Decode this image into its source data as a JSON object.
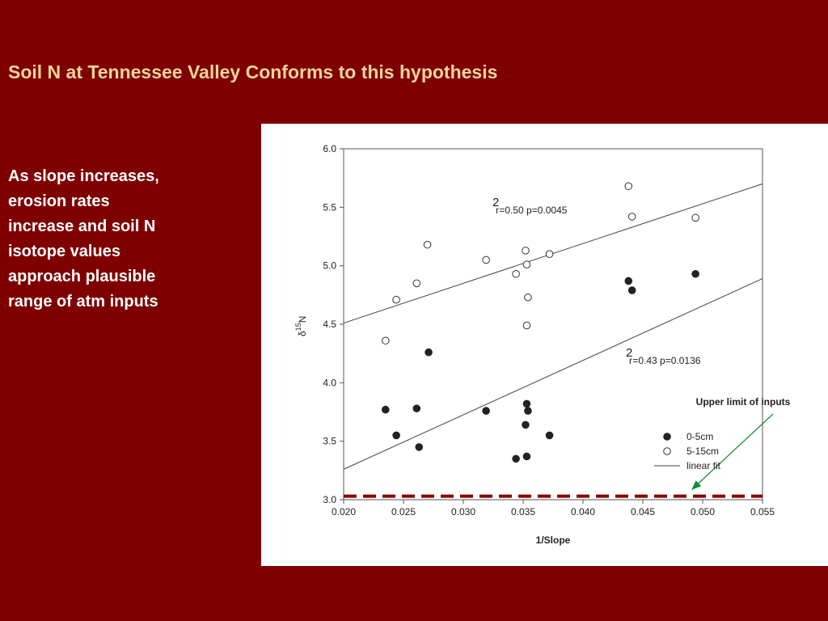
{
  "slide_title": "Soil N at Tennessee Valley Conforms to this hypothesis",
  "body_lines": [
    "As slope increases,",
    "erosion rates",
    "increase and soil N",
    "isotope values",
    "approach plausible",
    "range of atm inputs"
  ],
  "chart_data": {
    "type": "scatter",
    "xlabel": "1/Slope",
    "ylabel": {
      "symbol": "δ",
      "superscript": "15",
      "element": "N"
    },
    "xlim": [
      0.02,
      0.055
    ],
    "ylim": [
      3.0,
      6.0
    ],
    "xticks": [
      {
        "value": 0.02,
        "label": "0.020"
      },
      {
        "value": 0.025,
        "label": "0.025"
      },
      {
        "value": 0.03,
        "label": "0.030"
      },
      {
        "value": 0.035,
        "label": "0.035"
      },
      {
        "value": 0.04,
        "label": "0.040"
      },
      {
        "value": 0.045,
        "label": "0.045"
      },
      {
        "value": 0.05,
        "label": "0.050"
      },
      {
        "value": 0.055,
        "label": "0.055"
      }
    ],
    "yticks": [
      {
        "value": 3,
        "label": "3.0"
      },
      {
        "value": 3.5,
        "label": "3.5"
      },
      {
        "value": 4,
        "label": "4.0"
      },
      {
        "value": 4.5,
        "label": "4.5"
      },
      {
        "value": 5,
        "label": "5.0"
      },
      {
        "value": 5.5,
        "label": "5.5"
      },
      {
        "value": 6,
        "label": "6.0"
      }
    ],
    "series": [
      {
        "name": "0-5cm",
        "color": "#222222",
        "filled": true,
        "x": [
          0.0235,
          0.0244,
          0.0261,
          0.0263,
          0.0271,
          0.0319,
          0.0344,
          0.0353,
          0.0353,
          0.0354,
          0.0352,
          0.0372,
          0.0438,
          0.0441,
          0.0494
        ],
        "values": [
          3.77,
          3.55,
          3.78,
          3.45,
          4.26,
          3.76,
          3.35,
          3.37,
          3.82,
          3.76,
          3.64,
          3.55,
          4.87,
          4.79,
          4.93
        ]
      },
      {
        "name": "5-15cm",
        "color": "#333333",
        "filled": false,
        "x": [
          0.0235,
          0.0244,
          0.0261,
          0.027,
          0.0319,
          0.0344,
          0.0352,
          0.0353,
          0.0354,
          0.0353,
          0.0372,
          0.0438,
          0.0441,
          0.0494
        ],
        "values": [
          4.36,
          4.71,
          4.85,
          5.18,
          5.05,
          4.93,
          5.13,
          5.01,
          4.73,
          4.49,
          5.1,
          5.68,
          5.42,
          5.41
        ]
      }
    ],
    "fit": {
      "name": "linear fit",
      "color": "#444444",
      "x": [
        0.02,
        0.055
      ],
      "lines": [
        {
          "values": [
            4.51,
            5.7
          ],
          "annotation": {
            "r": "r",
            "exponent": "2",
            "text": "=0.50 p=0.0045"
          }
        },
        {
          "values": [
            3.26,
            4.89
          ],
          "annotation": {
            "r": "r",
            "exponent": "2",
            "text": "=0.43 p=0.0136"
          }
        }
      ]
    },
    "reference_line": {
      "value": 3.03,
      "color": "#8b0000",
      "label": "Upper limit of inputs",
      "label_color": "#138a36"
    }
  }
}
